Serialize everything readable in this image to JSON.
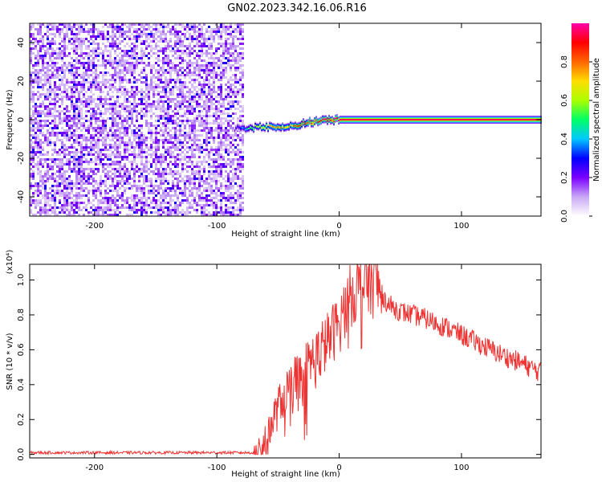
{
  "title": "GN02.2023.342.16.06.R16",
  "chart_data": [
    {
      "type": "heatmap",
      "xlabel": "Height of straight line (km)",
      "ylabel": "Frequency (Hz)",
      "xlim": [
        -253,
        165
      ],
      "ylim": [
        -50,
        50
      ],
      "xticks": [
        -200,
        -100,
        0,
        100
      ],
      "yticks": [
        -40,
        -20,
        0,
        20,
        40
      ],
      "grid": false,
      "colorbar": {
        "label": "Normalized spectral amplitude",
        "range": [
          0,
          1
        ],
        "ticks": [
          "0.0",
          "0.2",
          "0.4",
          "0.6",
          "0.8"
        ],
        "colormap": [
          "#ffffff",
          "#c9a8f5",
          "#7a00ff",
          "#0000ff",
          "#00c8ff",
          "#00ff66",
          "#aaff00",
          "#ffdd00",
          "#ff6600",
          "#ff0000",
          "#ff00aa"
        ]
      },
      "regions": [
        {
          "from_km": -253,
          "to_km": -78,
          "description_values": "broadband noise, amplitude 0.0-0.3"
        },
        {
          "from_km": -78,
          "to_km": 165,
          "description_values": "narrowband line near 0 Hz"
        }
      ],
      "line_track": {
        "x": [
          -85,
          -78,
          -70,
          -60,
          -50,
          -40,
          -30,
          -20,
          -10,
          0,
          50,
          100,
          165
        ],
        "freq": [
          -4,
          -5,
          -4,
          -4,
          -3.5,
          -3.5,
          -2,
          -1,
          -0.5,
          0,
          0,
          0,
          0
        ],
        "amplitude": [
          0.25,
          0.4,
          0.6,
          0.7,
          0.8,
          0.75,
          0.85,
          0.9,
          0.95,
          0.95,
          0.95,
          0.95,
          0.95
        ]
      }
    },
    {
      "type": "line",
      "xlabel": "Height of straight line (km)",
      "ylabel": "SNR (10 * v/v)",
      "scale_label": "(x10⁴)",
      "xlim": [
        -253,
        165
      ],
      "ylim": [
        -0.02,
        1.09
      ],
      "xticks": [
        -200,
        -100,
        0,
        100
      ],
      "yticks": [
        "0.0",
        "0.2",
        "0.4",
        "0.6",
        "0.8",
        "1.0"
      ],
      "grid": false,
      "color": "#ee3333",
      "envelope": {
        "x": [
          -253,
          -120,
          -70,
          -62,
          -55,
          -48,
          -40,
          -30,
          -15,
          0,
          10,
          20,
          25,
          30,
          35,
          40,
          50,
          70,
          90,
          110,
          130,
          150,
          165
        ],
        "y": [
          0.01,
          0.01,
          0.01,
          0.04,
          0.18,
          0.3,
          0.4,
          0.48,
          0.6,
          0.75,
          0.92,
          0.98,
          1.0,
          0.98,
          0.92,
          0.86,
          0.82,
          0.78,
          0.72,
          0.65,
          0.58,
          0.52,
          0.47
        ]
      }
    }
  ]
}
